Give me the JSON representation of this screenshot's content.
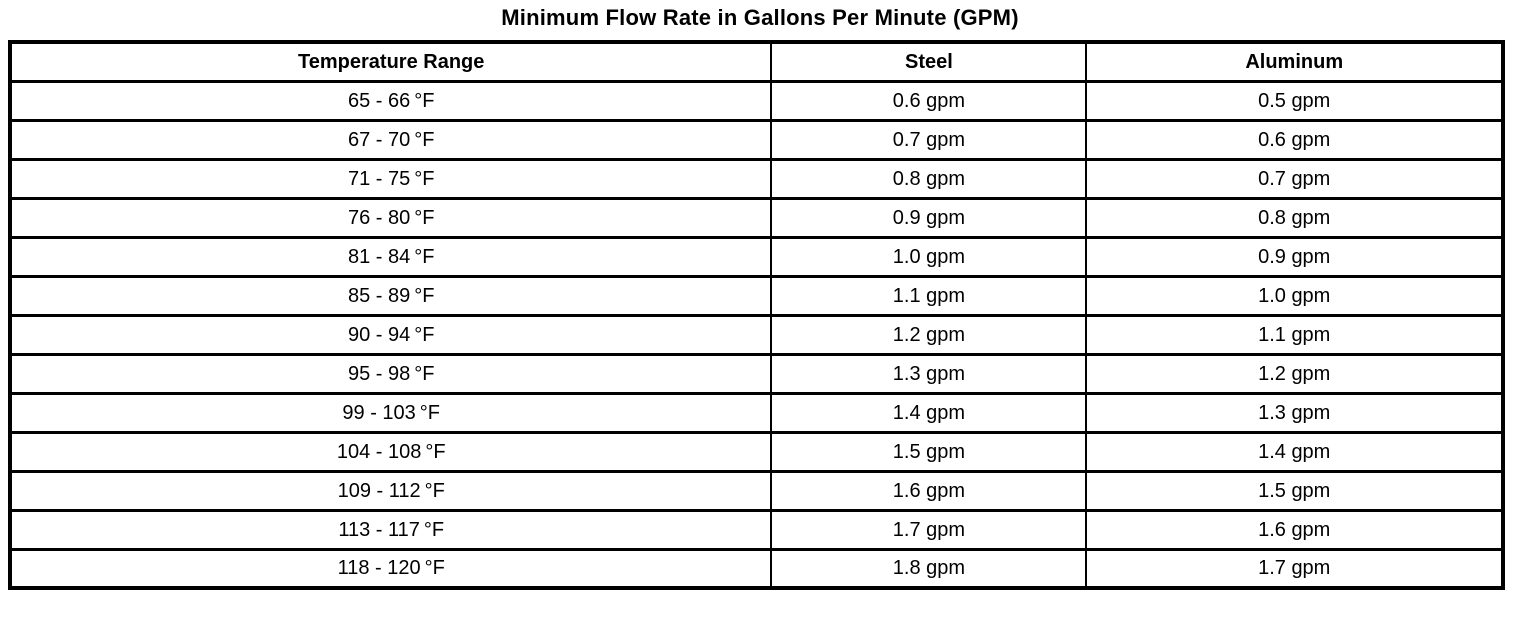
{
  "title": "Minimum Flow Rate in Gallons Per Minute (GPM)",
  "colors": {
    "text": "#000000",
    "border": "#000000",
    "background": "#ffffff"
  },
  "table": {
    "columns": [
      "Temperature Range",
      "Steel",
      "Aluminum"
    ],
    "rows": [
      {
        "range": "65 - 66 °F",
        "steel": "0.6 gpm",
        "aluminum": "0.5 gpm"
      },
      {
        "range": "67 - 70 °F",
        "steel": "0.7 gpm",
        "aluminum": "0.6 gpm"
      },
      {
        "range": "71 - 75 °F",
        "steel": "0.8 gpm",
        "aluminum": "0.7 gpm"
      },
      {
        "range": "76 - 80 °F",
        "steel": "0.9 gpm",
        "aluminum": "0.8 gpm"
      },
      {
        "range": "81 - 84 °F",
        "steel": "1.0 gpm",
        "aluminum": "0.9 gpm"
      },
      {
        "range": "85 - 89 °F",
        "steel": "1.1 gpm",
        "aluminum": "1.0 gpm"
      },
      {
        "range": "90 - 94 °F",
        "steel": "1.2 gpm",
        "aluminum": "1.1 gpm"
      },
      {
        "range": "95 - 98 °F",
        "steel": "1.3 gpm",
        "aluminum": "1.2 gpm"
      },
      {
        "range": "99 - 103 °F",
        "steel": "1.4 gpm",
        "aluminum": "1.3 gpm"
      },
      {
        "range": "104 - 108 °F",
        "steel": "1.5 gpm",
        "aluminum": "1.4 gpm"
      },
      {
        "range": "109 - 112 °F",
        "steel": "1.6 gpm",
        "aluminum": "1.5 gpm"
      },
      {
        "range": "113 - 117 °F",
        "steel": "1.7 gpm",
        "aluminum": "1.6 gpm"
      },
      {
        "range": "118 - 120 °F",
        "steel": "1.8 gpm",
        "aluminum": "1.7 gpm"
      }
    ]
  }
}
